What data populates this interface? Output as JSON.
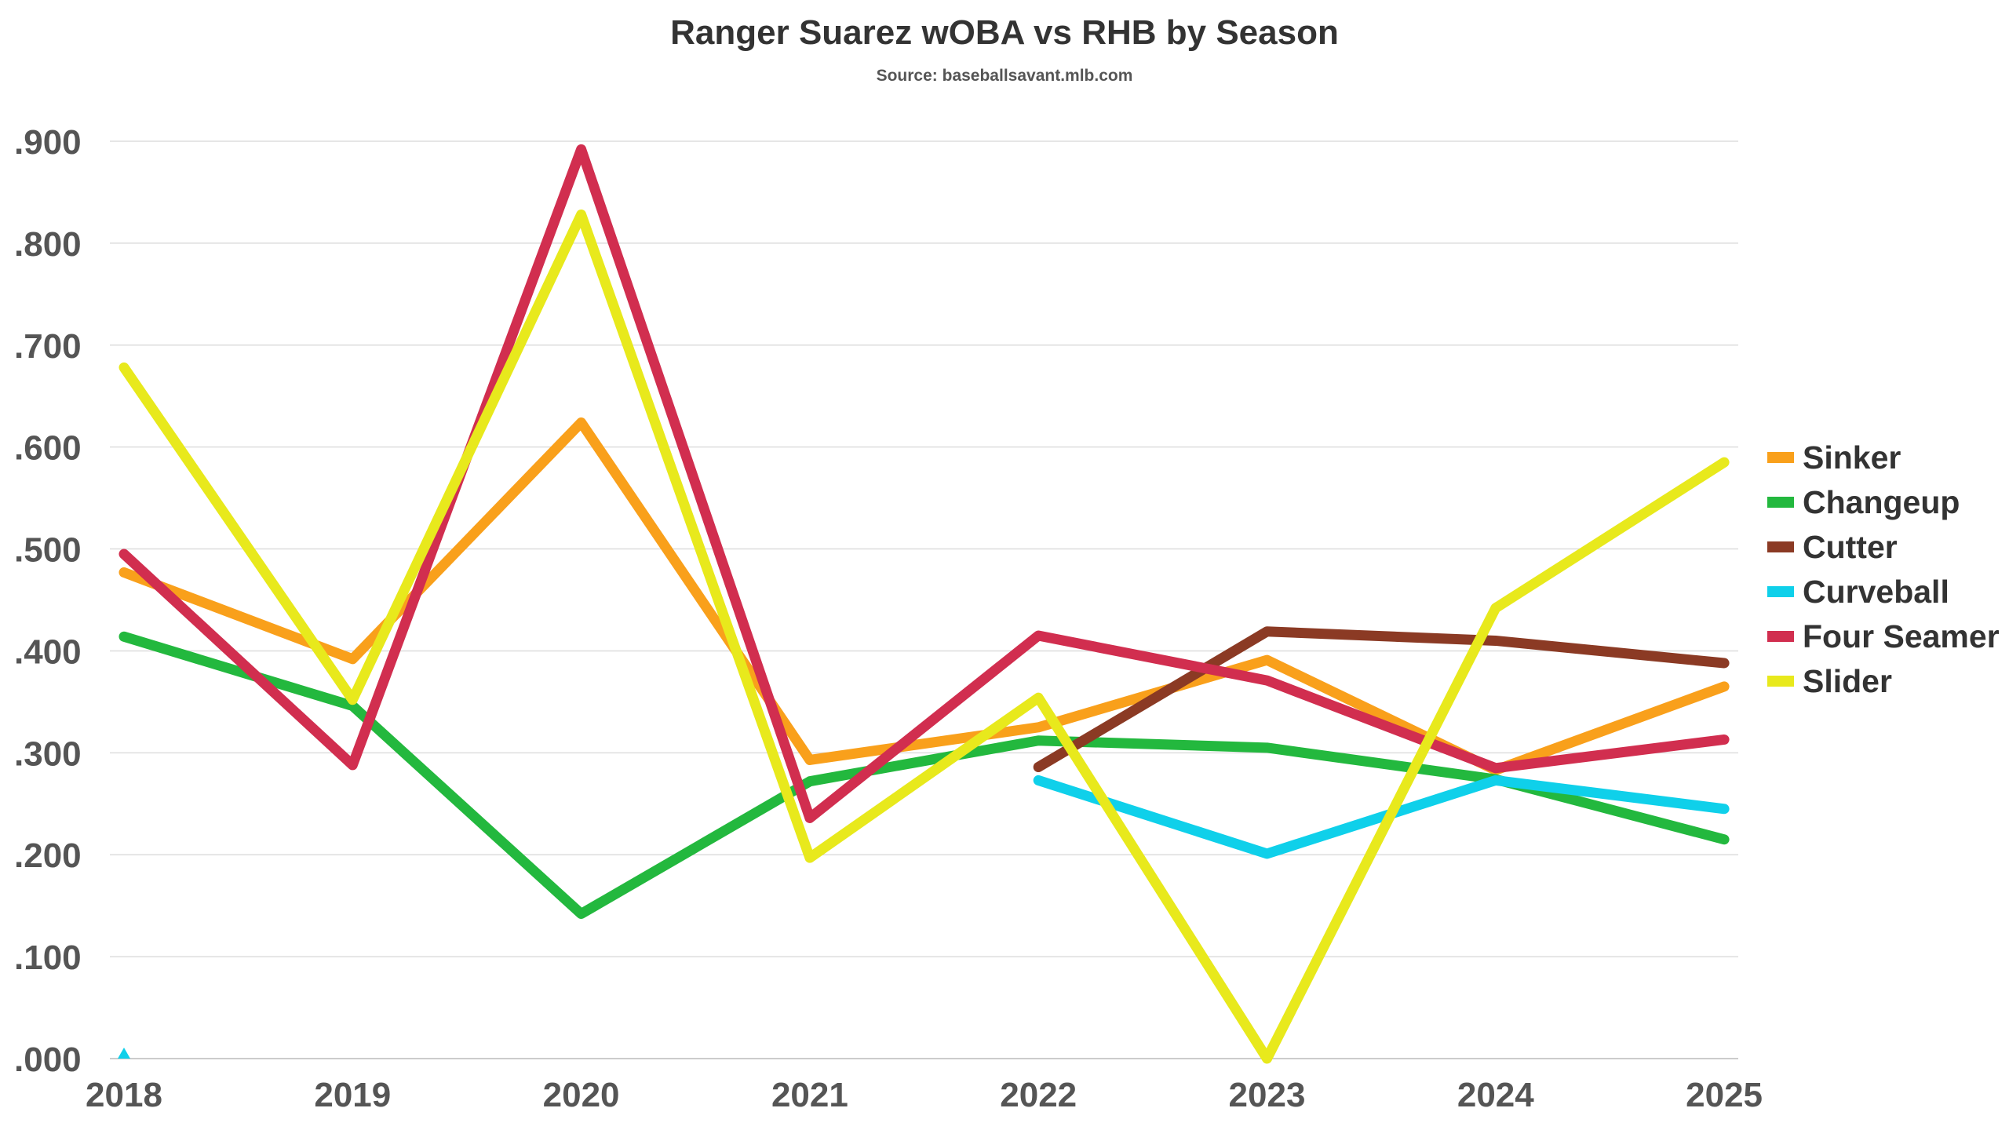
{
  "chart_data": {
    "type": "line",
    "title": "Ranger Suarez wOBA vs RHB by Season",
    "subtitle": "Source: baseballsavant.mlb.com",
    "xlabel": "",
    "ylabel": "",
    "x": [
      "2018",
      "2019",
      "2020",
      "2021",
      "2022",
      "2023",
      "2024",
      "2025"
    ],
    "ylim": [
      0,
      0.9
    ],
    "yticks": [
      0,
      0.1,
      0.2,
      0.3,
      0.4,
      0.5,
      0.6,
      0.7,
      0.8,
      0.9
    ],
    "ytick_labels": [
      ".000",
      ".100",
      ".200",
      ".300",
      ".400",
      ".500",
      ".600",
      ".700",
      ".800",
      ".900"
    ],
    "grid": true,
    "legend_position": "right",
    "series": [
      {
        "name": "Sinker",
        "color": "#f9a01b",
        "values": [
          0.477,
          0.392,
          0.624,
          0.293,
          0.325,
          0.391,
          0.283,
          0.365
        ]
      },
      {
        "name": "Changeup",
        "color": "#23b83e",
        "values": [
          0.414,
          0.346,
          0.142,
          0.272,
          0.312,
          0.305,
          0.274,
          0.215
        ]
      },
      {
        "name": "Cutter",
        "color": "#8b3a24",
        "values": [
          null,
          null,
          null,
          null,
          0.286,
          0.419,
          0.41,
          0.388
        ]
      },
      {
        "name": "Curveball",
        "color": "#0fd0ea",
        "values": [
          0.0,
          null,
          null,
          null,
          0.273,
          0.201,
          0.273,
          0.245
        ]
      },
      {
        "name": "Four Seamer",
        "color": "#d12e4f",
        "values": [
          0.495,
          0.288,
          0.892,
          0.236,
          0.415,
          0.371,
          0.285,
          0.313
        ]
      },
      {
        "name": "Slider",
        "color": "#e8e91c",
        "values": [
          0.678,
          0.352,
          0.828,
          0.197,
          0.354,
          0.0,
          0.442,
          0.585
        ]
      }
    ]
  }
}
